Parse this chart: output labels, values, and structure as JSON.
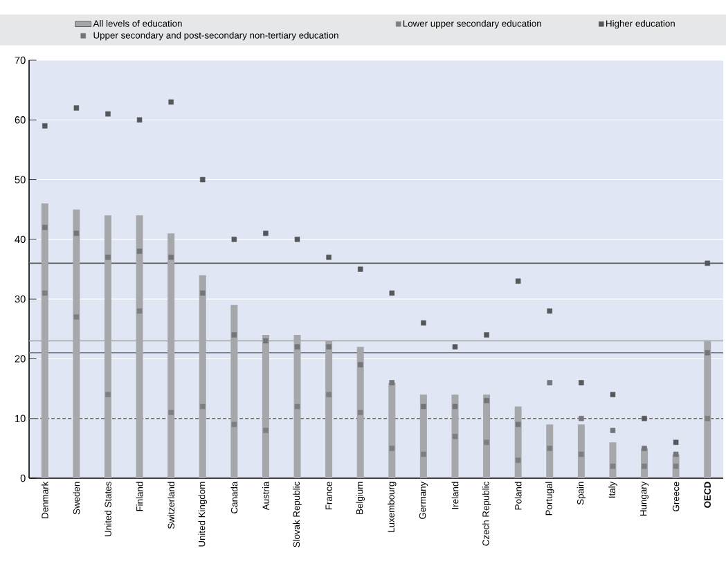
{
  "chart_data": {
    "type": "bar",
    "categories": [
      "Denmark",
      "Sweden",
      "United States",
      "Finland",
      "Switzerland",
      "United Kingdom",
      "Canada",
      "Austria",
      "Slovak Republic",
      "France",
      "Belgium",
      "Luxembourg",
      "Germany",
      "Ireland",
      "Czech Republic",
      "Poland",
      "Portugal",
      "Spain",
      "Italy",
      "Hungary",
      "Greece",
      "**OECD**"
    ],
    "series": [
      {
        "name": "All levels of education",
        "type": "bar",
        "color": "#a6a7ab",
        "values": [
          46,
          45,
          44,
          44,
          41,
          34,
          29,
          24,
          24,
          23,
          22,
          16,
          14,
          14,
          14,
          12,
          9,
          9,
          6,
          5,
          4,
          23
        ]
      },
      {
        "name": "Lower upper secondary education",
        "type": "scatter",
        "color": "#7d7e80",
        "values": [
          31,
          27,
          14,
          28,
          11,
          12,
          9,
          8,
          12,
          14,
          11,
          5,
          4,
          7,
          6,
          3,
          5,
          4,
          2,
          2,
          2,
          10
        ]
      },
      {
        "name": "Higher education",
        "type": "scatter",
        "color": "#555759",
        "values": [
          59,
          62,
          61,
          60,
          63,
          50,
          40,
          41,
          40,
          37,
          35,
          31,
          26,
          22,
          24,
          33,
          28,
          16,
          14,
          10,
          6,
          36
        ]
      },
      {
        "name": "Upper secondary and post-secondary non-tertiary education",
        "type": "scatter",
        "color": "#737578",
        "values": [
          42,
          41,
          37,
          38,
          37,
          31,
          24,
          23,
          22,
          22,
          19,
          16,
          12,
          12,
          13,
          9,
          16,
          10,
          8,
          5,
          4,
          21
        ]
      }
    ],
    "ylim": [
      0,
      70
    ],
    "yticks": [
      0,
      10,
      20,
      30,
      40,
      50,
      60,
      70
    ],
    "grid": "y",
    "legend": "top",
    "marker": "square",
    "ref_lines": [
      {
        "axis": "y",
        "value": 36,
        "color": "#58595b"
      },
      {
        "axis": "y",
        "value": 23,
        "color": "#a6a7ab"
      },
      {
        "axis": "y",
        "value": 21,
        "color": "#737578"
      },
      {
        "axis": "y",
        "value": 10,
        "color": "#6e6e6e",
        "line_style": "dashed"
      }
    ]
  }
}
